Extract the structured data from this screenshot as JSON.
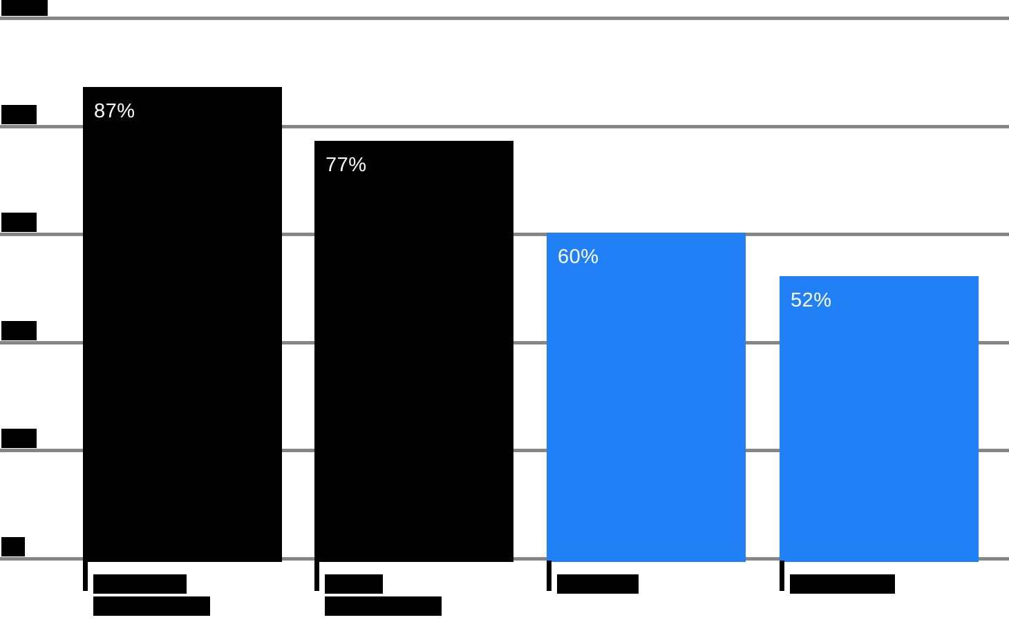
{
  "chart_data": {
    "type": "bar",
    "title": "",
    "values": [
      87,
      77,
      60,
      52
    ],
    "value_labels": [
      "87%",
      "77%",
      "60%",
      "52%"
    ],
    "bar_colors": [
      "#000000",
      "#000000",
      "#2280F7",
      "#2280F7"
    ],
    "categories_rendered": [
      "████████ ██████████",
      "█████ ██████████",
      "███████",
      "█████████"
    ],
    "categories_note": "category labels and y-axis tick labels are rendered as illegible solid black glyph blocks in the source image",
    "ylim": [
      0,
      100
    ],
    "ytick_values": [
      100,
      80,
      60,
      40,
      20,
      0
    ],
    "ytick_suffix": "%",
    "grid": true,
    "gridline_color": "#868686",
    "legend": false
  },
  "y_axis": {
    "ticks": [
      {
        "value": 100,
        "blob": "████"
      },
      {
        "value": 80,
        "blob": "███"
      },
      {
        "value": 60,
        "blob": "███"
      },
      {
        "value": 40,
        "blob": "███"
      },
      {
        "value": 20,
        "blob": "███"
      },
      {
        "value": 0,
        "blob": "██"
      }
    ]
  },
  "bars": [
    {
      "value": 87,
      "value_label": "87%",
      "color": "#000000",
      "category_blob_lines": [
        "████████",
        "██████████"
      ]
    },
    {
      "value": 77,
      "value_label": "77%",
      "color": "#000000",
      "category_blob_lines": [
        "█████",
        "██████████"
      ]
    },
    {
      "value": 60,
      "value_label": "60%",
      "color": "#2280F7",
      "category_blob_lines": [
        "███████"
      ]
    },
    {
      "value": 52,
      "value_label": "52%",
      "color": "#2280F7",
      "category_blob_lines": [
        "█████████"
      ]
    }
  ],
  "styles": {
    "background": "#ffffff",
    "gridline_color": "#868686",
    "bar_black": "#000000",
    "bar_blue": "#2280F7",
    "value_label_color": "#ffffff",
    "axis_tick_color": "#000000"
  }
}
